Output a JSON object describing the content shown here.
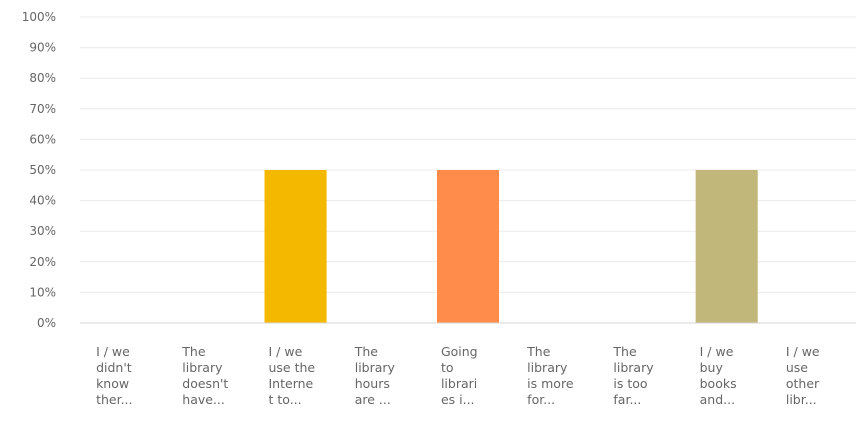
{
  "chart_data": {
    "type": "bar",
    "title": "",
    "xlabel": "",
    "ylabel": "",
    "ylim": [
      0,
      100
    ],
    "y_ticks": [
      "0%",
      "10%",
      "20%",
      "30%",
      "40%",
      "50%",
      "60%",
      "70%",
      "80%",
      "90%",
      "100%"
    ],
    "grid": true,
    "categories": [
      [
        "I / we",
        "didn't",
        "know",
        "ther..."
      ],
      [
        "The",
        "library",
        "doesn't",
        "have..."
      ],
      [
        "I / we",
        "use the",
        "Interne",
        "t to..."
      ],
      [
        "The",
        "library",
        "hours",
        "are ..."
      ],
      [
        "Going",
        "to",
        "librari",
        "es i..."
      ],
      [
        "The",
        "library",
        "is more",
        "for..."
      ],
      [
        "The",
        "library",
        "is too",
        "far..."
      ],
      [
        "I / we",
        "buy",
        "books",
        "and..."
      ],
      [
        "I / we",
        "use",
        "other",
        "libr..."
      ]
    ],
    "values": [
      0,
      0,
      50,
      0,
      50,
      0,
      0,
      50,
      0
    ],
    "colors": [
      "#4e9ecb",
      "#6fc0e8",
      "#f5b800",
      "#8fb8d8",
      "#ff8c4a",
      "#b3d19a",
      "#9bd1b7",
      "#c2b77a",
      "#d8d3a8"
    ]
  }
}
